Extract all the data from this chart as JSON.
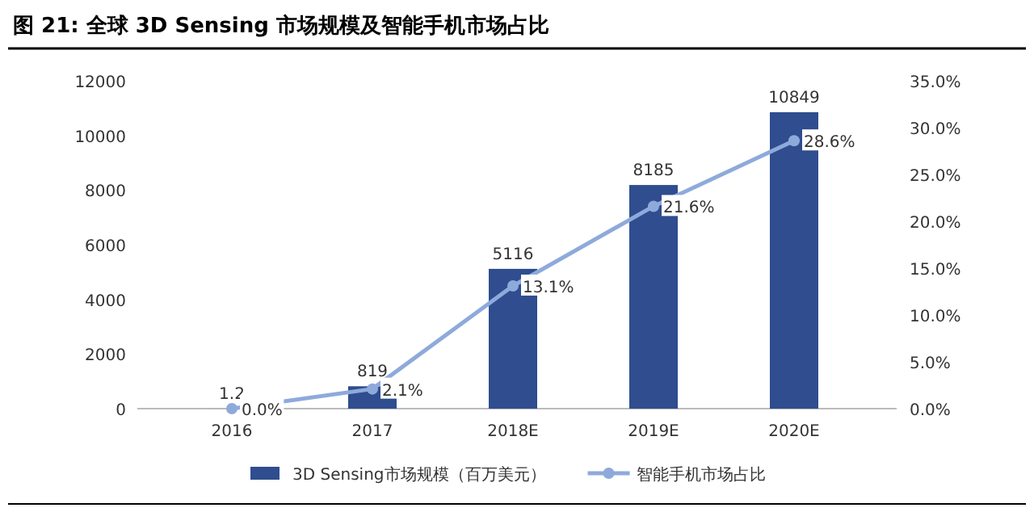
{
  "chart_data": {
    "type": "bar",
    "title": "图 21: 全球 3D Sensing 市场规模及智能手机市场占比",
    "categories": [
      "2016",
      "2017",
      "2018E",
      "2019E",
      "2020E"
    ],
    "series": [
      {
        "name": "3D Sensing市场规模（百万美元）",
        "color": "#2f4d8f",
        "values": [
          1.2,
          819,
          5116,
          8185,
          10849
        ],
        "value_labels": [
          "1.2",
          "819",
          "5116",
          "8185",
          "10849"
        ]
      },
      {
        "name": "智能手机市场占比",
        "type": "line",
        "axis": "y2",
        "color": "#8eaadb",
        "marker": "circle",
        "values": [
          0.0,
          2.1,
          13.1,
          21.6,
          28.6
        ],
        "value_labels": [
          "0.0%",
          "2.1%",
          "13.1%",
          "21.6%",
          "28.6%"
        ]
      }
    ],
    "ylim": [
      0,
      12000
    ],
    "yticks": [
      0,
      2000,
      4000,
      6000,
      8000,
      10000,
      12000
    ],
    "y2lim": [
      0,
      35
    ],
    "y2ticks": [
      {
        "value": 0,
        "label": "0.0%"
      },
      {
        "value": 5,
        "label": "5.0%"
      },
      {
        "value": 10,
        "label": "10.0%"
      },
      {
        "value": 15,
        "label": "15.0%"
      },
      {
        "value": 20,
        "label": "20.0%"
      },
      {
        "value": 25,
        "label": "25.0%"
      },
      {
        "value": 30,
        "label": "30.0%"
      },
      {
        "value": 35,
        "label": "35.0%"
      }
    ],
    "grid": false,
    "legend": "bottom"
  }
}
